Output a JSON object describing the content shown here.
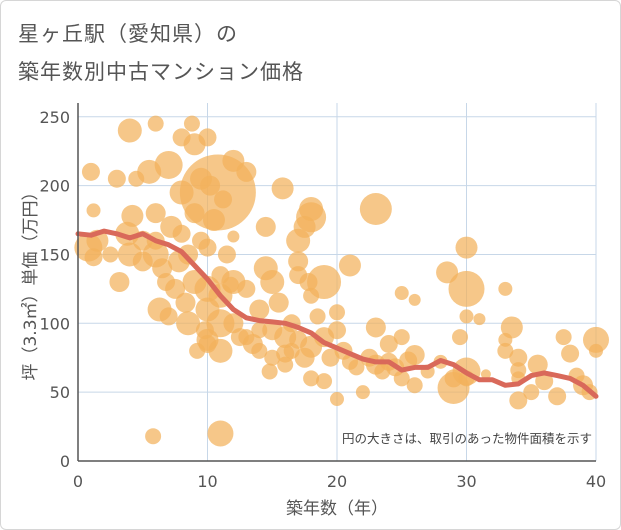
{
  "header": {
    "title_line1": "星ヶ丘駅（愛知県）の",
    "title_line2": "築年数別中古マンション価格"
  },
  "colors": {
    "bubble": "#f2b25c",
    "trend_line": "#d9695a",
    "grid": "#c7d7e8",
    "axis": "#555555"
  },
  "chart_data": {
    "type": "scatter",
    "title": "星ヶ丘駅（愛知県）の 築年数別中古マンション価格",
    "xlabel": "築年数（年）",
    "ylabel": "坪（3.3㎡）単価（万円）",
    "xlim": [
      0,
      40
    ],
    "ylim": [
      0,
      260
    ],
    "xticks": [
      0,
      10,
      20,
      30,
      40
    ],
    "yticks": [
      0,
      50,
      100,
      150,
      200,
      250
    ],
    "grid": true,
    "annotation": "円の大きさは、取引のあった物件面積を示す",
    "series": [
      {
        "kind": "bubbles",
        "points": [
          {
            "x": 0.8,
            "y": 155,
            "s": 14
          },
          {
            "x": 1.2,
            "y": 148,
            "s": 9
          },
          {
            "x": 1.5,
            "y": 160,
            "s": 11
          },
          {
            "x": 1,
            "y": 210,
            "s": 9
          },
          {
            "x": 1.2,
            "y": 182,
            "s": 7
          },
          {
            "x": 2.5,
            "y": 150,
            "s": 8
          },
          {
            "x": 3,
            "y": 205,
            "s": 9
          },
          {
            "x": 3.2,
            "y": 130,
            "s": 10
          },
          {
            "x": 3.8,
            "y": 165,
            "s": 12
          },
          {
            "x": 4,
            "y": 150,
            "s": 12
          },
          {
            "x": 4,
            "y": 240,
            "s": 12
          },
          {
            "x": 4.2,
            "y": 178,
            "s": 11
          },
          {
            "x": 4.5,
            "y": 205,
            "s": 8
          },
          {
            "x": 5,
            "y": 145,
            "s": 10
          },
          {
            "x": 5,
            "y": 160,
            "s": 10
          },
          {
            "x": 5.5,
            "y": 210,
            "s": 12
          },
          {
            "x": 6,
            "y": 245,
            "s": 8
          },
          {
            "x": 6,
            "y": 180,
            "s": 10
          },
          {
            "x": 6,
            "y": 160,
            "s": 9
          },
          {
            "x": 6,
            "y": 150,
            "s": 13
          },
          {
            "x": 5.8,
            "y": 18,
            "s": 8
          },
          {
            "x": 6.3,
            "y": 110,
            "s": 12
          },
          {
            "x": 6.5,
            "y": 140,
            "s": 10
          },
          {
            "x": 6.8,
            "y": 130,
            "s": 9
          },
          {
            "x": 7,
            "y": 105,
            "s": 9
          },
          {
            "x": 7,
            "y": 215,
            "s": 14
          },
          {
            "x": 7.2,
            "y": 170,
            "s": 11
          },
          {
            "x": 7.5,
            "y": 125,
            "s": 10
          },
          {
            "x": 7.8,
            "y": 145,
            "s": 11
          },
          {
            "x": 8,
            "y": 235,
            "s": 9
          },
          {
            "x": 8,
            "y": 165,
            "s": 9
          },
          {
            "x": 8,
            "y": 195,
            "s": 12
          },
          {
            "x": 8.3,
            "y": 115,
            "s": 10
          },
          {
            "x": 8.5,
            "y": 150,
            "s": 10
          },
          {
            "x": 8.5,
            "y": 100,
            "s": 12
          },
          {
            "x": 8.8,
            "y": 245,
            "s": 8
          },
          {
            "x": 9,
            "y": 230,
            "s": 11
          },
          {
            "x": 9,
            "y": 180,
            "s": 10
          },
          {
            "x": 9,
            "y": 130,
            "s": 12
          },
          {
            "x": 9.2,
            "y": 80,
            "s": 8
          },
          {
            "x": 9.5,
            "y": 205,
            "s": 11
          },
          {
            "x": 9.5,
            "y": 160,
            "s": 9
          },
          {
            "x": 9.8,
            "y": 95,
            "s": 9
          },
          {
            "x": 10,
            "y": 235,
            "s": 9
          },
          {
            "x": 10,
            "y": 155,
            "s": 9
          },
          {
            "x": 10,
            "y": 125,
            "s": 13
          },
          {
            "x": 10,
            "y": 110,
            "s": 12
          },
          {
            "x": 10,
            "y": 88,
            "s": 11
          },
          {
            "x": 10,
            "y": 85,
            "s": 9
          },
          {
            "x": 10.2,
            "y": 200,
            "s": 10
          },
          {
            "x": 10.5,
            "y": 175,
            "s": 11
          },
          {
            "x": 10.8,
            "y": 195,
            "s": 38
          },
          {
            "x": 11,
            "y": 20,
            "s": 13
          },
          {
            "x": 11,
            "y": 135,
            "s": 9
          },
          {
            "x": 11,
            "y": 120,
            "s": 12
          },
          {
            "x": 11,
            "y": 100,
            "s": 14
          },
          {
            "x": 11,
            "y": 80,
            "s": 12
          },
          {
            "x": 11.2,
            "y": 190,
            "s": 9
          },
          {
            "x": 11.5,
            "y": 150,
            "s": 9
          },
          {
            "x": 11.8,
            "y": 128,
            "s": 8
          },
          {
            "x": 12,
            "y": 218,
            "s": 11
          },
          {
            "x": 12,
            "y": 163,
            "s": 6
          },
          {
            "x": 12,
            "y": 130,
            "s": 12
          },
          {
            "x": 12,
            "y": 100,
            "s": 10
          },
          {
            "x": 12.5,
            "y": 90,
            "s": 9
          },
          {
            "x": 13,
            "y": 210,
            "s": 10
          },
          {
            "x": 13,
            "y": 125,
            "s": 9
          },
          {
            "x": 13,
            "y": 90,
            "s": 8
          },
          {
            "x": 13.5,
            "y": 85,
            "s": 10
          },
          {
            "x": 14,
            "y": 110,
            "s": 10
          },
          {
            "x": 14,
            "y": 95,
            "s": 8
          },
          {
            "x": 14,
            "y": 80,
            "s": 8
          },
          {
            "x": 14.5,
            "y": 140,
            "s": 12
          },
          {
            "x": 14.5,
            "y": 170,
            "s": 10
          },
          {
            "x": 14.8,
            "y": 65,
            "s": 8
          },
          {
            "x": 15,
            "y": 95,
            "s": 10
          },
          {
            "x": 15,
            "y": 130,
            "s": 12
          },
          {
            "x": 15,
            "y": 75,
            "s": 8
          },
          {
            "x": 15.5,
            "y": 115,
            "s": 10
          },
          {
            "x": 15.8,
            "y": 198,
            "s": 11
          },
          {
            "x": 16,
            "y": 90,
            "s": 11
          },
          {
            "x": 16,
            "y": 78,
            "s": 9
          },
          {
            "x": 16,
            "y": 70,
            "s": 8
          },
          {
            "x": 16.5,
            "y": 100,
            "s": 9
          },
          {
            "x": 16.5,
            "y": 80,
            "s": 8
          },
          {
            "x": 17,
            "y": 160,
            "s": 12
          },
          {
            "x": 17,
            "y": 145,
            "s": 10
          },
          {
            "x": 17,
            "y": 135,
            "s": 9
          },
          {
            "x": 17,
            "y": 88,
            "s": 9
          },
          {
            "x": 17.5,
            "y": 170,
            "s": 11
          },
          {
            "x": 17.5,
            "y": 75,
            "s": 10
          },
          {
            "x": 17.8,
            "y": 130,
            "s": 9
          },
          {
            "x": 18,
            "y": 177,
            "s": 15
          },
          {
            "x": 18,
            "y": 183,
            "s": 12
          },
          {
            "x": 18,
            "y": 120,
            "s": 8
          },
          {
            "x": 18,
            "y": 83,
            "s": 11
          },
          {
            "x": 18,
            "y": 60,
            "s": 8
          },
          {
            "x": 18.5,
            "y": 105,
            "s": 8
          },
          {
            "x": 19,
            "y": 130,
            "s": 17
          },
          {
            "x": 19,
            "y": 90,
            "s": 10
          },
          {
            "x": 19,
            "y": 58,
            "s": 8
          },
          {
            "x": 19.5,
            "y": 75,
            "s": 9
          },
          {
            "x": 20,
            "y": 108,
            "s": 8
          },
          {
            "x": 20,
            "y": 95,
            "s": 9
          },
          {
            "x": 20,
            "y": 45,
            "s": 7
          },
          {
            "x": 20.5,
            "y": 80,
            "s": 9
          },
          {
            "x": 21,
            "y": 142,
            "s": 11
          },
          {
            "x": 21,
            "y": 72,
            "s": 8
          },
          {
            "x": 21.5,
            "y": 68,
            "s": 8
          },
          {
            "x": 22,
            "y": 50,
            "s": 7
          },
          {
            "x": 22.5,
            "y": 75,
            "s": 9
          },
          {
            "x": 23,
            "y": 183,
            "s": 16
          },
          {
            "x": 23,
            "y": 97,
            "s": 10
          },
          {
            "x": 23,
            "y": 70,
            "s": 10
          },
          {
            "x": 23.5,
            "y": 65,
            "s": 8
          },
          {
            "x": 24,
            "y": 85,
            "s": 9
          },
          {
            "x": 24,
            "y": 72,
            "s": 9
          },
          {
            "x": 24.5,
            "y": 68,
            "s": 9
          },
          {
            "x": 25,
            "y": 122,
            "s": 7
          },
          {
            "x": 25,
            "y": 90,
            "s": 8
          },
          {
            "x": 25,
            "y": 60,
            "s": 8
          },
          {
            "x": 25.5,
            "y": 73,
            "s": 9
          },
          {
            "x": 26,
            "y": 117,
            "s": 6
          },
          {
            "x": 26,
            "y": 77,
            "s": 10
          },
          {
            "x": 26,
            "y": 55,
            "s": 8
          },
          {
            "x": 27,
            "y": 65,
            "s": 7
          },
          {
            "x": 28,
            "y": 72,
            "s": 7
          },
          {
            "x": 28.5,
            "y": 137,
            "s": 11
          },
          {
            "x": 29,
            "y": 60,
            "s": 9
          },
          {
            "x": 29,
            "y": 53,
            "s": 16
          },
          {
            "x": 29.5,
            "y": 90,
            "s": 8
          },
          {
            "x": 30,
            "y": 155,
            "s": 11
          },
          {
            "x": 30,
            "y": 125,
            "s": 18
          },
          {
            "x": 30,
            "y": 105,
            "s": 7
          },
          {
            "x": 30,
            "y": 65,
            "s": 14
          },
          {
            "x": 30,
            "y": 60,
            "s": 8
          },
          {
            "x": 31,
            "y": 103,
            "s": 6
          },
          {
            "x": 31.5,
            "y": 63,
            "s": 5
          },
          {
            "x": 33,
            "y": 125,
            "s": 7
          },
          {
            "x": 33,
            "y": 88,
            "s": 7
          },
          {
            "x": 33,
            "y": 80,
            "s": 8
          },
          {
            "x": 33.5,
            "y": 97,
            "s": 11
          },
          {
            "x": 34,
            "y": 75,
            "s": 9
          },
          {
            "x": 34,
            "y": 66,
            "s": 8
          },
          {
            "x": 34,
            "y": 60,
            "s": 7
          },
          {
            "x": 34,
            "y": 44,
            "s": 9
          },
          {
            "x": 35,
            "y": 50,
            "s": 8
          },
          {
            "x": 35.5,
            "y": 70,
            "s": 10
          },
          {
            "x": 36,
            "y": 58,
            "s": 9
          },
          {
            "x": 37,
            "y": 47,
            "s": 9
          },
          {
            "x": 37.5,
            "y": 90,
            "s": 8
          },
          {
            "x": 38,
            "y": 78,
            "s": 9
          },
          {
            "x": 38.5,
            "y": 62,
            "s": 8
          },
          {
            "x": 39,
            "y": 55,
            "s": 10
          },
          {
            "x": 39.5,
            "y": 50,
            "s": 8
          },
          {
            "x": 40,
            "y": 88,
            "s": 13
          },
          {
            "x": 40,
            "y": 80,
            "s": 7
          }
        ]
      },
      {
        "kind": "line",
        "x": [
          0,
          1,
          2,
          3,
          4,
          5,
          6,
          7,
          8,
          9,
          10,
          11,
          12,
          13,
          14,
          15,
          16,
          17,
          18,
          19,
          20,
          21,
          22,
          23,
          24,
          25,
          26,
          27,
          28,
          29,
          30,
          31,
          32,
          33,
          34,
          35,
          36,
          37,
          38,
          39,
          40
        ],
        "y": [
          165,
          164,
          167,
          165,
          162,
          165,
          160,
          157,
          152,
          142,
          132,
          120,
          110,
          104,
          102,
          101,
          100,
          97,
          93,
          86,
          82,
          78,
          74,
          72,
          72,
          66,
          68,
          68,
          73,
          70,
          64,
          59,
          59,
          55,
          56,
          62,
          64,
          62,
          60,
          55,
          47
        ]
      }
    ]
  }
}
